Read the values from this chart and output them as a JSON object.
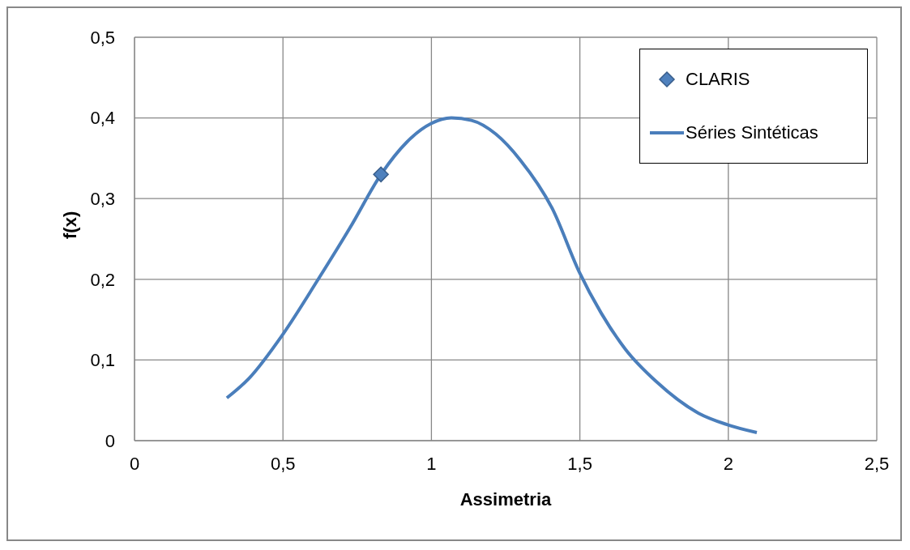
{
  "chart_data": {
    "type": "line",
    "xlabel": "Assimetria",
    "ylabel": "f(x)",
    "xlim": [
      0,
      2.5
    ],
    "xticks": [
      {
        "value": 0,
        "label": "0"
      },
      {
        "value": 0.5,
        "label": "0,5"
      },
      {
        "value": 1,
        "label": "1"
      },
      {
        "value": 1.5,
        "label": "1,5"
      },
      {
        "value": 2,
        "label": "2"
      },
      {
        "value": 2.5,
        "label": "2,5"
      }
    ],
    "ylim": [
      0,
      0.5
    ],
    "yticks": [
      {
        "value": 0,
        "label": "0"
      },
      {
        "value": 0.1,
        "label": "0,1"
      },
      {
        "value": 0.2,
        "label": "0,2"
      },
      {
        "value": 0.3,
        "label": "0,3"
      },
      {
        "value": 0.4,
        "label": "0,4"
      },
      {
        "value": 0.5,
        "label": "0,5"
      }
    ],
    "grid": true,
    "legend": "top right",
    "series": [
      {
        "name": "CLARIS",
        "type": "scatter",
        "marker": "diamond",
        "color": "#4f81bd",
        "x": [
          0.83
        ],
        "values": [
          0.33
        ]
      },
      {
        "name": "Séries Sintéticas",
        "marker": "none",
        "line_style": "solid",
        "color": "#4a7ebb",
        "x": [
          0.311,
          0.385,
          0.5,
          0.617,
          0.726,
          0.832,
          0.917,
          0.999,
          1.067,
          1.135,
          1.217,
          1.299,
          1.408,
          1.498,
          1.572,
          1.654,
          1.758,
          1.9,
          1.995,
          2.096
        ],
        "values": [
          0.053,
          0.077,
          0.132,
          0.199,
          0.264,
          0.331,
          0.37,
          0.393,
          0.4,
          0.397,
          0.38,
          0.348,
          0.287,
          0.209,
          0.158,
          0.113,
          0.073,
          0.034,
          0.02,
          0.01
        ]
      }
    ]
  }
}
